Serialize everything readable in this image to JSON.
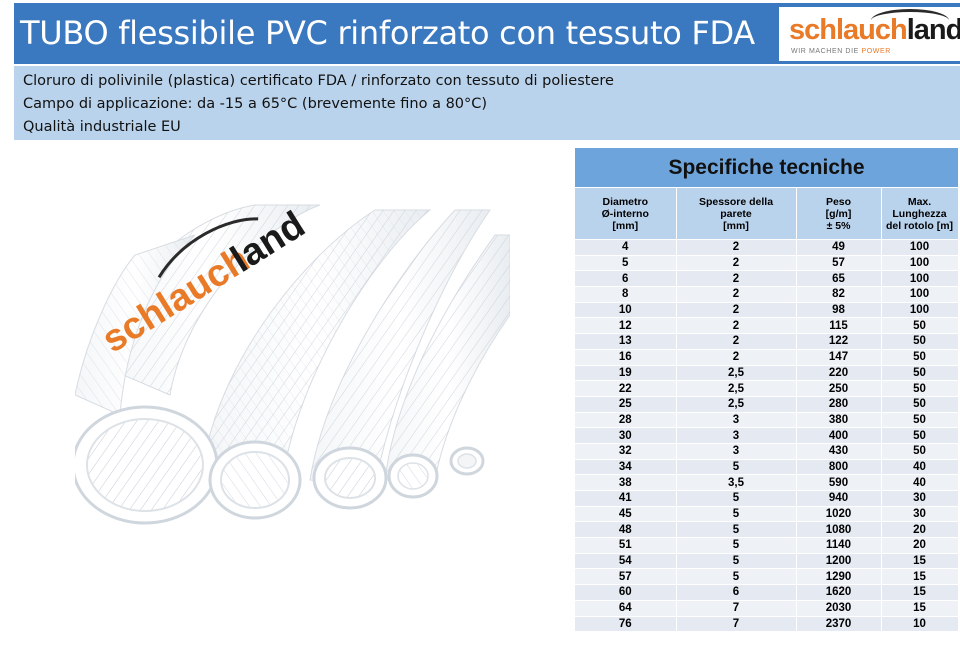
{
  "header": {
    "title": "TUBO flessibile PVC rinforzato con tessuto FDA",
    "logo_part1": "schlauch",
    "logo_part2": "land",
    "logo_slogan_a": "WIR MACHEN DIE ",
    "logo_slogan_b": "POWER"
  },
  "info": {
    "line1": "Cloruro di polivinile (plastica) certificato FDA / rinforzato con tessuto di poliestere",
    "line2": "Campo di applicazione: da -15 a 65°C (brevemente fino a 80°C)",
    "line3": "Qualità industriale EU"
  },
  "photo": {
    "logo_part1": "schlauch",
    "logo_part2": "land"
  },
  "specs": {
    "title": "Specifiche tecniche",
    "headers": [
      [
        "Diametro",
        "Ø-interno",
        "[mm]"
      ],
      [
        "Spessore della",
        "parete",
        "[mm]"
      ],
      [
        "Peso",
        "[g/m]",
        "± 5%"
      ],
      [
        "Max.",
        "Lunghezza",
        "del rotolo [m]"
      ]
    ],
    "rows": [
      [
        "4",
        "2",
        "49",
        "100"
      ],
      [
        "5",
        "2",
        "57",
        "100"
      ],
      [
        "6",
        "2",
        "65",
        "100"
      ],
      [
        "8",
        "2",
        "82",
        "100"
      ],
      [
        "10",
        "2",
        "98",
        "100"
      ],
      [
        "12",
        "2",
        "115",
        "50"
      ],
      [
        "13",
        "2",
        "122",
        "50"
      ],
      [
        "16",
        "2",
        "147",
        "50"
      ],
      [
        "19",
        "2,5",
        "220",
        "50"
      ],
      [
        "22",
        "2,5",
        "250",
        "50"
      ],
      [
        "25",
        "2,5",
        "280",
        "50"
      ],
      [
        "28",
        "3",
        "380",
        "50"
      ],
      [
        "30",
        "3",
        "400",
        "50"
      ],
      [
        "32",
        "3",
        "430",
        "50"
      ],
      [
        "34",
        "5",
        "800",
        "40"
      ],
      [
        "38",
        "3,5",
        "590",
        "40"
      ],
      [
        "41",
        "5",
        "940",
        "30"
      ],
      [
        "45",
        "5",
        "1020",
        "30"
      ],
      [
        "48",
        "5",
        "1080",
        "20"
      ],
      [
        "51",
        "5",
        "1140",
        "20"
      ],
      [
        "54",
        "5",
        "1200",
        "15"
      ],
      [
        "57",
        "5",
        "1290",
        "15"
      ],
      [
        "60",
        "6",
        "1620",
        "15"
      ],
      [
        "64",
        "7",
        "2030",
        "15"
      ],
      [
        "76",
        "7",
        "2370",
        "10"
      ]
    ]
  },
  "colors": {
    "header_bg": "#3a78bf",
    "info_bg": "#bad3ec",
    "spec_title_bg": "#6ea4dc",
    "logo_orange": "#e97a27"
  }
}
